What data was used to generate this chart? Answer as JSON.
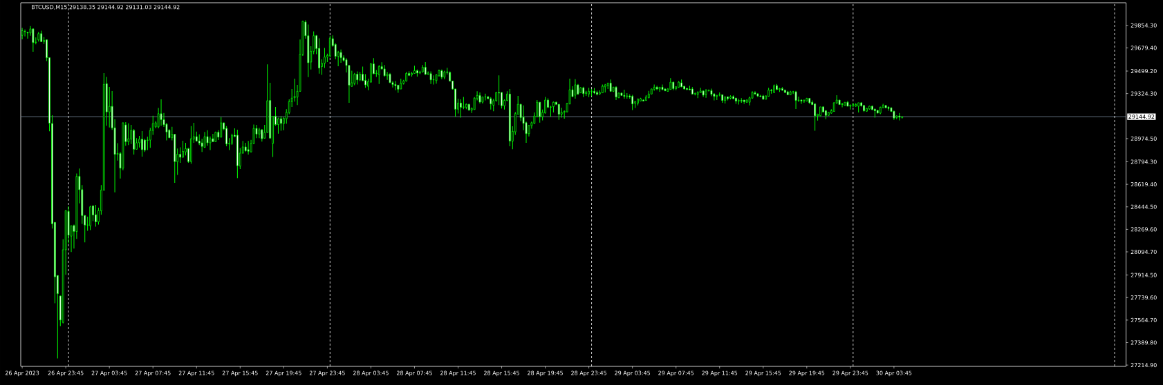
{
  "chart_data": {
    "type": "candlestick",
    "title": "BTCUSD,M15 29138.35 29144.92 29131.03 29144.92",
    "color": "#00ff00",
    "x": [
      "2023-04-26T19:45",
      "2023-04-26T20:00",
      "2023-04-26T20:15",
      "2023-04-26T20:30",
      "2023-04-26T20:45",
      "2023-04-26T21:00",
      "2023-04-26T21:15",
      "2023-04-26T21:30",
      "2023-04-26T21:45",
      "2023-04-26T22:00",
      "2023-04-26T22:15",
      "2023-04-26T22:30",
      "2023-04-26T22:45",
      "2023-04-26T23:00",
      "2023-04-26T23:15",
      "2023-04-26T23:30",
      "2023-04-26T23:45",
      "2023-04-27T00:00",
      "2023-04-27T00:15",
      "2023-04-27T00:30",
      "2023-04-27T00:45",
      "2023-04-27T01:00",
      "2023-04-27T01:15",
      "2023-04-27T01:30",
      "2023-04-27T01:45",
      "2023-04-27T02:00",
      "2023-04-27T02:15",
      "2023-04-27T02:30",
      "2023-04-27T02:45",
      "2023-04-27T03:00",
      "2023-04-27T03:15",
      "2023-04-27T03:30",
      "2023-04-27T03:45",
      "2023-04-27T04:00",
      "2023-04-27T04:15",
      "2023-04-27T04:30",
      "2023-04-27T04:45",
      "2023-04-27T05:00",
      "2023-04-27T05:15",
      "2023-04-27T05:30",
      "2023-04-27T05:45",
      "2023-04-27T06:00",
      "2023-04-27T06:15",
      "2023-04-27T06:30",
      "2023-04-27T06:45",
      "2023-04-27T07:00",
      "2023-04-27T07:15",
      "2023-04-27T07:30",
      "2023-04-27T07:45",
      "2023-04-27T08:00",
      "2023-04-27T08:15",
      "2023-04-27T08:30",
      "2023-04-27T08:45",
      "2023-04-27T09:00",
      "2023-04-27T09:15",
      "2023-04-27T09:30",
      "2023-04-27T09:45",
      "2023-04-27T10:00",
      "2023-04-27T10:15",
      "2023-04-27T10:30",
      "2023-04-27T10:45",
      "2023-04-27T11:00",
      "2023-04-27T11:15",
      "2023-04-27T11:30",
      "2023-04-27T11:45",
      "2023-04-27T12:00",
      "2023-04-27T12:15",
      "2023-04-27T12:30",
      "2023-04-27T12:45",
      "2023-04-27T13:00",
      "2023-04-27T13:15",
      "2023-04-27T13:30",
      "2023-04-27T13:45",
      "2023-04-27T14:00",
      "2023-04-27T14:15",
      "2023-04-27T14:30",
      "2023-04-27T14:45",
      "2023-04-27T15:00",
      "2023-04-27T15:15",
      "2023-04-27T15:30",
      "2023-04-27T15:45",
      "2023-04-27T16:00",
      "2023-04-27T16:15",
      "2023-04-27T16:30",
      "2023-04-27T16:45",
      "2023-04-27T17:00",
      "2023-04-27T17:15",
      "2023-04-27T17:30",
      "2023-04-27T17:45",
      "2023-04-27T18:00",
      "2023-04-27T18:15",
      "2023-04-27T18:30",
      "2023-04-27T18:45",
      "2023-04-27T19:00",
      "2023-04-27T19:15",
      "2023-04-27T19:30",
      "2023-04-27T19:45",
      "2023-04-27T20:00",
      "2023-04-27T20:15",
      "2023-04-27T20:30",
      "2023-04-27T20:45",
      "2023-04-27T21:00",
      "2023-04-27T21:15",
      "2023-04-27T21:30",
      "2023-04-27T21:45",
      "2023-04-27T22:00",
      "2023-04-27T22:15",
      "2023-04-27T22:30",
      "2023-04-27T22:45",
      "2023-04-27T23:00",
      "2023-04-27T23:15",
      "2023-04-27T23:30",
      "2023-04-27T23:45",
      "2023-04-28T00:00",
      "2023-04-28T00:15",
      "2023-04-28T00:30",
      "2023-04-28T00:45",
      "2023-04-28T01:00",
      "2023-04-28T01:15",
      "2023-04-28T01:30",
      "2023-04-28T01:45",
      "2023-04-28T02:00",
      "2023-04-28T02:15",
      "2023-04-28T02:30",
      "2023-04-28T02:45",
      "2023-04-28T03:00",
      "2023-04-28T03:15",
      "2023-04-28T03:30",
      "2023-04-28T03:45",
      "2023-04-28T04:00",
      "2023-04-28T04:15",
      "2023-04-28T04:30",
      "2023-04-28T04:45",
      "2023-04-28T05:00",
      "2023-04-28T05:15",
      "2023-04-28T05:30",
      "2023-04-28T05:45",
      "2023-04-28T06:00",
      "2023-04-28T06:15",
      "2023-04-28T06:30",
      "2023-04-28T06:45",
      "2023-04-28T07:00",
      "2023-04-28T07:15",
      "2023-04-28T07:30",
      "2023-04-28T07:45",
      "2023-04-28T08:00",
      "2023-04-28T08:15",
      "2023-04-28T08:30",
      "2023-04-28T08:45",
      "2023-04-28T09:00",
      "2023-04-28T09:15",
      "2023-04-28T09:30",
      "2023-04-28T09:45",
      "2023-04-28T10:00",
      "2023-04-28T10:15",
      "2023-04-28T10:30",
      "2023-04-28T10:45",
      "2023-04-28T11:00",
      "2023-04-28T11:15",
      "2023-04-28T11:30",
      "2023-04-28T11:45",
      "2023-04-28T12:00",
      "2023-04-28T12:15",
      "2023-04-28T12:30",
      "2023-04-28T12:45",
      "2023-04-28T13:00",
      "2023-04-28T13:15",
      "2023-04-28T13:30",
      "2023-04-28T13:45",
      "2023-04-28T14:00",
      "2023-04-28T14:15",
      "2023-04-28T14:30",
      "2023-04-28T14:45",
      "2023-04-28T15:00",
      "2023-04-28T15:15",
      "2023-04-28T15:30",
      "2023-04-28T15:45",
      "2023-04-28T16:00",
      "2023-04-28T16:15",
      "2023-04-28T16:30",
      "2023-04-28T16:45",
      "2023-04-28T17:00",
      "2023-04-28T17:15",
      "2023-04-28T17:30",
      "2023-04-28T17:45",
      "2023-04-28T18:00",
      "2023-04-28T18:15",
      "2023-04-28T18:30",
      "2023-04-28T18:45",
      "2023-04-28T19:00",
      "2023-04-28T19:15",
      "2023-04-28T19:30",
      "2023-04-28T19:45",
      "2023-04-28T20:00",
      "2023-04-28T20:15",
      "2023-04-28T20:30",
      "2023-04-28T20:45",
      "2023-04-28T21:00",
      "2023-04-28T21:15",
      "2023-04-28T21:30",
      "2023-04-28T21:45",
      "2023-04-28T22:00",
      "2023-04-28T22:15",
      "2023-04-28T22:30",
      "2023-04-28T22:45",
      "2023-04-28T23:00",
      "2023-04-28T23:15",
      "2023-04-28T23:30",
      "2023-04-28T23:45",
      "2023-04-29T00:00",
      "2023-04-29T00:15",
      "2023-04-29T00:30",
      "2023-04-29T00:45",
      "2023-04-29T01:00",
      "2023-04-29T01:15",
      "2023-04-29T01:30",
      "2023-04-29T01:45",
      "2023-04-29T02:00",
      "2023-04-29T02:15",
      "2023-04-29T02:30",
      "2023-04-29T02:45",
      "2023-04-29T03:00",
      "2023-04-29T03:15",
      "2023-04-29T03:30",
      "2023-04-29T03:45",
      "2023-04-29T04:00",
      "2023-04-29T04:15",
      "2023-04-29T04:30",
      "2023-04-29T04:45",
      "2023-04-29T05:00",
      "2023-04-29T05:15",
      "2023-04-29T05:30",
      "2023-04-29T05:45",
      "2023-04-29T06:00",
      "2023-04-29T06:15",
      "2023-04-29T06:30",
      "2023-04-29T06:45",
      "2023-04-29T07:00",
      "2023-04-29T07:15",
      "2023-04-29T07:30",
      "2023-04-29T07:45",
      "2023-04-29T08:00",
      "2023-04-29T08:15",
      "2023-04-29T08:30",
      "2023-04-29T08:45",
      "2023-04-29T09:00",
      "2023-04-29T09:15",
      "2023-04-29T09:30",
      "2023-04-29T09:45",
      "2023-04-29T10:00",
      "2023-04-29T10:15",
      "2023-04-29T10:30",
      "2023-04-29T10:45",
      "2023-04-29T11:00",
      "2023-04-29T11:15",
      "2023-04-29T11:30",
      "2023-04-29T11:45",
      "2023-04-29T12:00",
      "2023-04-29T12:15",
      "2023-04-29T12:30",
      "2023-04-29T12:45",
      "2023-04-29T13:00",
      "2023-04-29T13:15",
      "2023-04-29T13:30",
      "2023-04-29T13:45",
      "2023-04-29T14:00",
      "2023-04-29T14:15",
      "2023-04-29T14:30",
      "2023-04-29T14:45",
      "2023-04-29T15:00",
      "2023-04-29T15:15",
      "2023-04-29T15:30",
      "2023-04-29T15:45",
      "2023-04-29T16:00",
      "2023-04-29T16:15",
      "2023-04-29T16:30",
      "2023-04-29T16:45",
      "2023-04-29T17:00",
      "2023-04-29T17:15",
      "2023-04-29T17:30",
      "2023-04-29T17:45",
      "2023-04-29T18:00",
      "2023-04-29T18:15",
      "2023-04-29T18:30",
      "2023-04-29T18:45",
      "2023-04-29T19:00",
      "2023-04-29T19:15",
      "2023-04-29T19:30",
      "2023-04-29T19:45",
      "2023-04-29T20:00",
      "2023-04-29T20:15",
      "2023-04-29T20:30",
      "2023-04-29T20:45",
      "2023-04-29T21:00",
      "2023-04-29T21:15",
      "2023-04-29T21:30",
      "2023-04-29T21:45",
      "2023-04-29T22:00",
      "2023-04-29T22:15",
      "2023-04-29T22:30",
      "2023-04-29T22:45",
      "2023-04-29T23:00",
      "2023-04-29T23:15",
      "2023-04-29T23:30",
      "2023-04-29T23:45",
      "2023-04-30T00:00",
      "2023-04-30T00:15",
      "2023-04-30T00:30",
      "2023-04-30T00:45",
      "2023-04-30T01:00",
      "2023-04-30T01:15",
      "2023-04-30T01:30",
      "2023-04-30T01:45",
      "2023-04-30T02:00",
      "2023-04-30T02:15",
      "2023-04-30T02:30",
      "2023-04-30T02:45",
      "2023-04-30T03:00",
      "2023-04-30T03:15",
      "2023-04-30T03:30",
      "2023-04-30T03:45",
      "2023-04-30T04:00",
      "2023-04-30T04:15",
      "2023-04-30T04:30"
    ],
    "ohlc": [
      [
        29777,
        29834,
        29746,
        29813
      ],
      [
        29808,
        29822,
        29769,
        29806
      ],
      [
        29800,
        29805,
        29751,
        29795
      ],
      [
        29795,
        29849,
        29774,
        29827
      ],
      [
        29827,
        29830,
        29650,
        29721
      ],
      [
        29721,
        29760,
        29707,
        29724
      ],
      [
        29742,
        29804,
        29728,
        29790
      ],
      [
        29790,
        29813,
        29724,
        29728
      ],
      [
        29728,
        29763,
        29710,
        29738
      ],
      [
        29742,
        29745,
        29577,
        29603
      ],
      [
        29603,
        29605,
        29031,
        29095
      ],
      [
        29092,
        29156,
        28276,
        28313
      ],
      [
        28324,
        28326,
        27695,
        27901
      ],
      [
        27911,
        27913,
        27267,
        27770
      ],
      [
        27752,
        27754,
        27517,
        27565
      ],
      [
        27547,
        28193,
        27539,
        28111
      ],
      [
        28111,
        28418,
        27917,
        28415
      ],
      [
        28409,
        28448,
        28161,
        28223
      ],
      [
        28217,
        28300,
        28093,
        28297
      ],
      [
        28299,
        28306,
        28120,
        28253
      ],
      [
        28253,
        28703,
        28196,
        28681
      ],
      [
        28681,
        28742,
        28472,
        28578
      ],
      [
        28578,
        28614,
        28312,
        28377
      ],
      [
        28377,
        28380,
        28168,
        28303
      ],
      [
        28303,
        28368,
        28258,
        28303
      ],
      [
        28297,
        28452,
        28264,
        28445
      ],
      [
        28452,
        28455,
        28333,
        28381
      ],
      [
        28383,
        28459,
        28290,
        28328
      ],
      [
        28328,
        28438,
        28306,
        28415
      ],
      [
        28413,
        28614,
        28383,
        28575
      ],
      [
        28575,
        29483,
        28569,
        29396
      ],
      [
        29401,
        29454,
        29074,
        29182
      ],
      [
        29182,
        29376,
        29061,
        29225
      ],
      [
        29225,
        29344,
        29042,
        29058
      ],
      [
        29058,
        29125,
        28557,
        28852
      ],
      [
        28852,
        28939,
        28804,
        28859
      ],
      [
        28859,
        28871,
        28665,
        28745
      ],
      [
        28745,
        29100,
        28729,
        29097
      ],
      [
        29081,
        29102,
        28919,
        28951
      ],
      [
        28951,
        29093,
        28924,
        28974
      ],
      [
        28970,
        29081,
        28933,
        29038
      ],
      [
        29038,
        29049,
        28850,
        28892
      ],
      [
        28892,
        28978,
        28890,
        28942
      ],
      [
        28942,
        28995,
        28906,
        28970
      ],
      [
        28970,
        29033,
        28835,
        28889
      ],
      [
        28963,
        28974,
        28871,
        28885
      ],
      [
        28961,
        28990,
        28885,
        28963
      ],
      [
        28963,
        29058,
        28903,
        29038
      ],
      [
        29038,
        29152,
        29004,
        29091
      ],
      [
        29066,
        29111,
        29054,
        29098
      ],
      [
        29066,
        29212,
        29054,
        29168
      ],
      [
        29168,
        29280,
        29075,
        29122
      ],
      [
        29122,
        29173,
        29065,
        29082
      ],
      [
        29086,
        29097,
        28960,
        29026
      ],
      [
        29040,
        29047,
        28978,
        28981
      ],
      [
        28981,
        29066,
        28960,
        29008
      ],
      [
        29008,
        29010,
        28631,
        28796
      ],
      [
        28795,
        28898,
        28693,
        28853
      ],
      [
        28853,
        28907,
        28787,
        28830
      ],
      [
        28830,
        28958,
        28826,
        28875
      ],
      [
        28871,
        28942,
        28844,
        28896
      ],
      [
        28896,
        28903,
        28787,
        28796
      ],
      [
        28796,
        29072,
        28780,
        28974
      ],
      [
        28970,
        29097,
        28942,
        28990
      ],
      [
        28990,
        29029,
        28951,
        28956
      ],
      [
        28956,
        29008,
        28924,
        28940
      ],
      [
        28942,
        28974,
        28871,
        28914
      ],
      [
        28907,
        29026,
        28903,
        28990
      ],
      [
        28990,
        29040,
        28919,
        28942
      ],
      [
        28942,
        28992,
        28885,
        28974
      ],
      [
        28974,
        29011,
        28948,
        28951
      ],
      [
        28951,
        29029,
        28948,
        29024
      ],
      [
        29024,
        29040,
        28963,
        28986
      ],
      [
        28986,
        29141,
        28984,
        29097
      ],
      [
        29097,
        29100,
        29040,
        29049
      ],
      [
        29054,
        29072,
        28915,
        28933
      ],
      [
        28933,
        28978,
        28885,
        28938
      ],
      [
        28938,
        29013,
        28926,
        29001
      ],
      [
        29001,
        29054,
        28986,
        28992
      ],
      [
        29001,
        29043,
        28667,
        28764
      ],
      [
        28761,
        28901,
        28738,
        28862
      ],
      [
        28862,
        28956,
        28858,
        28910
      ],
      [
        28910,
        28942,
        28871,
        28880
      ],
      [
        28889,
        28956,
        28850,
        28876
      ],
      [
        28871,
        28965,
        28868,
        28937
      ],
      [
        28937,
        29084,
        28933,
        29054
      ],
      [
        29054,
        29081,
        28978,
        29010
      ],
      [
        29010,
        29058,
        28978,
        29043
      ],
      [
        29043,
        29049,
        28951,
        28974
      ],
      [
        28978,
        29081,
        28975,
        29022
      ],
      [
        29022,
        29552,
        29020,
        29269
      ],
      [
        29271,
        29408,
        28975,
        28978
      ],
      [
        28937,
        29150,
        28832,
        29148
      ],
      [
        29148,
        29221,
        29075,
        29084
      ],
      [
        29084,
        29138,
        29013,
        29129
      ],
      [
        29129,
        29150,
        29036,
        29093
      ],
      [
        29091,
        29143,
        29040,
        29132
      ],
      [
        29129,
        29203,
        29090,
        29178
      ],
      [
        29178,
        29280,
        29164,
        29262
      ],
      [
        29262,
        29360,
        29221,
        29289
      ],
      [
        29292,
        29440,
        29262,
        29303
      ],
      [
        29297,
        29392,
        29235,
        29342
      ],
      [
        29342,
        29745,
        29340,
        29630
      ],
      [
        29630,
        29890,
        29617,
        29887
      ],
      [
        29880,
        29893,
        29751,
        29774
      ],
      [
        29774,
        29861,
        29452,
        29564
      ],
      [
        29569,
        29692,
        29511,
        29653
      ],
      [
        29653,
        29807,
        29630,
        29774
      ],
      [
        29774,
        29780,
        29630,
        29674
      ],
      [
        29676,
        29754,
        29479,
        29523
      ],
      [
        29534,
        29591,
        29470,
        29560
      ],
      [
        29560,
        29679,
        29523,
        29608
      ],
      [
        29608,
        29635,
        29569,
        29621
      ],
      [
        29617,
        29774,
        29605,
        29754
      ],
      [
        29751,
        29777,
        29688,
        29697
      ],
      [
        29706,
        29715,
        29591,
        29614
      ],
      [
        29614,
        29656,
        29537,
        29644
      ],
      [
        29644,
        29667,
        29564,
        29603
      ],
      [
        29603,
        29621,
        29573,
        29582
      ],
      [
        29587,
        29600,
        29488,
        29543
      ],
      [
        29543,
        29545,
        29253,
        29390
      ],
      [
        29381,
        29502,
        29377,
        29408
      ],
      [
        29404,
        29484,
        29390,
        29475
      ],
      [
        29475,
        29497,
        29395,
        29431
      ],
      [
        29431,
        29493,
        29422,
        29475
      ],
      [
        29475,
        29534,
        29422,
        29425
      ],
      [
        29427,
        29475,
        29369,
        29392
      ],
      [
        29381,
        29440,
        29351,
        29418
      ],
      [
        29413,
        29564,
        29411,
        29555
      ],
      [
        29555,
        29600,
        29475,
        29479
      ],
      [
        29479,
        29507,
        29454,
        29482
      ],
      [
        29470,
        29546,
        29399,
        29534
      ],
      [
        29534,
        29568,
        29511,
        29516
      ],
      [
        29516,
        29546,
        29457,
        29463
      ],
      [
        29463,
        29493,
        29431,
        29475
      ],
      [
        29475,
        29484,
        29408,
        29409
      ],
      [
        29409,
        29422,
        29372,
        29395
      ],
      [
        29395,
        29422,
        29351,
        29386
      ],
      [
        29390,
        29392,
        29330,
        29358
      ],
      [
        29360,
        29440,
        29358,
        29404
      ],
      [
        29404,
        29431,
        29395,
        29422
      ],
      [
        29422,
        29493,
        29418,
        29481
      ],
      [
        29481,
        29498,
        29461,
        29466
      ],
      [
        29470,
        29493,
        29457,
        29481
      ],
      [
        29481,
        29541,
        29479,
        29502
      ],
      [
        29502,
        29511,
        29457,
        29484
      ],
      [
        29484,
        29502,
        29475,
        29493
      ],
      [
        29493,
        29546,
        29487,
        29529
      ],
      [
        29529,
        29569,
        29467,
        29475
      ],
      [
        29475,
        29497,
        29470,
        29484
      ],
      [
        29479,
        29497,
        29399,
        29431
      ],
      [
        29431,
        29466,
        29395,
        29434
      ],
      [
        29425,
        29475,
        29401,
        29470
      ],
      [
        29463,
        29511,
        29457,
        29502
      ],
      [
        29502,
        29511,
        29436,
        29452
      ],
      [
        29452,
        29502,
        29436,
        29493
      ],
      [
        29493,
        29525,
        29472,
        29489
      ],
      [
        29489,
        29497,
        29418,
        29422
      ],
      [
        29422,
        29424,
        29354,
        29360
      ],
      [
        29360,
        29362,
        29146,
        29203
      ],
      [
        29203,
        29285,
        29170,
        29251
      ],
      [
        29251,
        29280,
        29138,
        29218
      ],
      [
        29218,
        29298,
        29203,
        29221
      ],
      [
        29218,
        29248,
        29203,
        29241
      ],
      [
        29241,
        29244,
        29191,
        29196
      ],
      [
        29196,
        29217,
        29173,
        29209
      ],
      [
        29200,
        29297,
        29199,
        29289
      ],
      [
        29285,
        29342,
        29271,
        29310
      ],
      [
        29310,
        29333,
        29248,
        29258
      ],
      [
        29258,
        29301,
        29248,
        29298
      ],
      [
        29298,
        29324,
        29271,
        29299
      ],
      [
        29299,
        29306,
        29280,
        29285
      ],
      [
        29285,
        29297,
        29200,
        29244
      ],
      [
        29234,
        29283,
        29187,
        29269
      ],
      [
        29269,
        29337,
        29262,
        29333
      ],
      [
        29333,
        29466,
        29235,
        29328
      ],
      [
        29333,
        29335,
        29209,
        29230
      ],
      [
        29230,
        29280,
        29200,
        29271
      ],
      [
        29271,
        29342,
        29265,
        29321
      ],
      [
        29321,
        29360,
        28915,
        28956
      ],
      [
        28955,
        29070,
        28892,
        29031
      ],
      [
        29027,
        29182,
        29004,
        29168
      ],
      [
        29164,
        29306,
        29163,
        29241
      ],
      [
        29241,
        29244,
        29111,
        29138
      ],
      [
        29141,
        29232,
        29040,
        29093
      ],
      [
        29098,
        29106,
        28942,
        29013
      ],
      [
        29013,
        29081,
        28992,
        29075
      ],
      [
        29075,
        29106,
        29052,
        29098
      ],
      [
        29093,
        29177,
        29088,
        29150
      ],
      [
        29145,
        29274,
        29141,
        29257
      ],
      [
        29257,
        29259,
        29098,
        29145
      ],
      [
        29145,
        29200,
        29116,
        29178
      ],
      [
        29173,
        29298,
        29169,
        29274
      ],
      [
        29274,
        29288,
        29212,
        29218
      ],
      [
        29218,
        29230,
        29146,
        29221
      ],
      [
        29223,
        29262,
        29177,
        29257
      ],
      [
        29257,
        29262,
        29235,
        29241
      ],
      [
        29241,
        29242,
        29120,
        29164
      ],
      [
        29164,
        29214,
        29138,
        29178
      ],
      [
        29178,
        29194,
        29129,
        29186
      ],
      [
        29182,
        29253,
        29180,
        29248
      ],
      [
        29244,
        29440,
        29240,
        29354
      ],
      [
        29354,
        29381,
        29297,
        29301
      ],
      [
        29312,
        29436,
        29285,
        29392
      ],
      [
        29392,
        29399,
        29315,
        29321
      ],
      [
        29330,
        29374,
        29329,
        29369
      ],
      [
        29369,
        29377,
        29297,
        29324
      ],
      [
        29324,
        29346,
        29306,
        29337
      ],
      [
        29321,
        29369,
        29297,
        29342
      ],
      [
        29342,
        29360,
        29303,
        29342
      ],
      [
        29342,
        29368,
        29321,
        29330
      ],
      [
        29333,
        29347,
        29310,
        29319
      ],
      [
        29321,
        29349,
        29315,
        29333
      ],
      [
        29330,
        29395,
        29328,
        29381
      ],
      [
        29377,
        29399,
        29333,
        29392
      ],
      [
        29386,
        29410,
        29360,
        29404
      ],
      [
        29406,
        29434,
        29338,
        29342
      ],
      [
        29342,
        29377,
        29337,
        29374
      ],
      [
        29374,
        29381,
        29274,
        29298
      ],
      [
        29292,
        29333,
        29289,
        29328
      ],
      [
        29328,
        29333,
        29306,
        29310
      ],
      [
        29310,
        29354,
        29285,
        29303
      ],
      [
        29303,
        29328,
        29285,
        29306
      ],
      [
        29306,
        29319,
        29285,
        29298
      ],
      [
        29303,
        29315,
        29196,
        29244
      ],
      [
        29250,
        29266,
        29212,
        29262
      ],
      [
        29250,
        29284,
        29232,
        29283
      ],
      [
        29267,
        29292,
        29265,
        29285
      ],
      [
        29274,
        29280,
        29265,
        29267
      ],
      [
        29271,
        29312,
        29270,
        29298
      ],
      [
        29292,
        29345,
        29288,
        29321
      ],
      [
        29321,
        29363,
        29320,
        29360
      ],
      [
        29358,
        29395,
        29347,
        29374
      ],
      [
        29374,
        29386,
        29351,
        29360
      ],
      [
        29360,
        29374,
        29338,
        29374
      ],
      [
        29374,
        29395,
        29351,
        29356
      ],
      [
        29360,
        29367,
        29342,
        29347
      ],
      [
        29342,
        29367,
        29338,
        29360
      ],
      [
        29356,
        29445,
        29356,
        29413
      ],
      [
        29413,
        29417,
        29351,
        29363
      ],
      [
        29363,
        29381,
        29351,
        29377
      ],
      [
        29374,
        29422,
        29369,
        29413
      ],
      [
        29408,
        29434,
        29374,
        29377
      ],
      [
        29381,
        29386,
        29356,
        29360
      ],
      [
        29365,
        29368,
        29351,
        29356
      ],
      [
        29360,
        29386,
        29351,
        29354
      ],
      [
        29360,
        29374,
        29319,
        29321
      ],
      [
        29321,
        29333,
        29310,
        29324
      ],
      [
        29319,
        29342,
        29289,
        29333
      ],
      [
        29331,
        29369,
        29331,
        29345
      ],
      [
        29345,
        29346,
        29298,
        29312
      ],
      [
        29319,
        29360,
        29292,
        29345
      ],
      [
        29345,
        29356,
        29342,
        29351
      ],
      [
        29347,
        29363,
        29303,
        29319
      ],
      [
        29321,
        29328,
        29271,
        29303
      ],
      [
        29303,
        29315,
        29274,
        29310
      ],
      [
        29313,
        29333,
        29303,
        29315
      ],
      [
        29315,
        29319,
        29253,
        29271
      ],
      [
        29271,
        29303,
        29248,
        29298
      ],
      [
        29298,
        29303,
        29271,
        29285
      ],
      [
        29289,
        29310,
        29280,
        29301
      ],
      [
        29301,
        29310,
        29280,
        29285
      ],
      [
        29289,
        29292,
        29244,
        29266
      ],
      [
        29266,
        29285,
        29239,
        29271
      ],
      [
        29271,
        29289,
        29253,
        29267
      ],
      [
        29274,
        29274,
        29244,
        29262
      ],
      [
        29257,
        29280,
        29253,
        29274
      ],
      [
        29257,
        29301,
        29232,
        29292
      ],
      [
        29289,
        29342,
        29285,
        29333
      ],
      [
        29331,
        29342,
        29315,
        29322
      ],
      [
        29322,
        29328,
        29297,
        29306
      ],
      [
        29306,
        29315,
        29297,
        29301
      ],
      [
        29306,
        29315,
        29280,
        29280
      ],
      [
        29280,
        29310,
        29280,
        29306
      ],
      [
        29303,
        29369,
        29303,
        29351
      ],
      [
        29351,
        29360,
        29324,
        29347
      ],
      [
        29333,
        29395,
        29328,
        29386
      ],
      [
        29386,
        29399,
        29351,
        29356
      ],
      [
        29356,
        29369,
        29337,
        29363
      ],
      [
        29363,
        29374,
        29345,
        29351
      ],
      [
        29351,
        29356,
        29328,
        29333
      ],
      [
        29338,
        29345,
        29312,
        29315
      ],
      [
        29315,
        29345,
        29312,
        29338
      ],
      [
        29338,
        29345,
        29321,
        29338
      ],
      [
        29338,
        29345,
        29205,
        29271
      ],
      [
        29271,
        29301,
        29260,
        29274
      ],
      [
        29274,
        29280,
        29244,
        29266
      ],
      [
        29266,
        29280,
        29253,
        29271
      ],
      [
        29266,
        29292,
        29265,
        29287
      ],
      [
        29287,
        29289,
        29244,
        29253
      ],
      [
        29257,
        29271,
        29235,
        29239
      ],
      [
        29244,
        29246,
        29036,
        29152
      ],
      [
        29152,
        29168,
        29114,
        29164
      ],
      [
        29152,
        29221,
        29150,
        29221
      ],
      [
        29221,
        29226,
        29178,
        29182
      ],
      [
        29191,
        29196,
        29125,
        29155
      ],
      [
        29155,
        29182,
        29152,
        29178
      ],
      [
        29173,
        29203,
        29168,
        29191
      ],
      [
        29186,
        29257,
        29185,
        29253
      ],
      [
        29251,
        29312,
        29244,
        29274
      ],
      [
        29274,
        29276,
        29239,
        29239
      ],
      [
        29239,
        29253,
        29218,
        29244
      ],
      [
        29232,
        29257,
        29232,
        29257
      ],
      [
        29257,
        29267,
        29226,
        29226
      ],
      [
        29226,
        29239,
        29200,
        29235
      ],
      [
        29228,
        29253,
        29221,
        29239
      ],
      [
        29228,
        29250,
        29221,
        29239
      ],
      [
        29226,
        29253,
        29177,
        29253
      ],
      [
        29253,
        29257,
        29223,
        29230
      ],
      [
        29232,
        29235,
        29182,
        29191
      ],
      [
        29187,
        29212,
        29185,
        29209
      ],
      [
        29205,
        29230,
        29200,
        29226
      ],
      [
        29226,
        29232,
        29196,
        29200
      ],
      [
        29203,
        29209,
        29138,
        29191
      ],
      [
        29194,
        29196,
        29169,
        29173
      ],
      [
        29173,
        29223,
        29164,
        29218
      ],
      [
        29214,
        29244,
        29212,
        29232
      ],
      [
        29232,
        29235,
        29212,
        29214
      ],
      [
        29218,
        29226,
        29191,
        29209
      ],
      [
        29214,
        29217,
        29182,
        29186
      ],
      [
        29187,
        29191,
        29120,
        29134
      ],
      [
        29138,
        29155,
        29125,
        29150
      ],
      [
        29150,
        29173,
        29116,
        29141
      ],
      [
        29138.35,
        29144.92,
        29131.03,
        29144.92
      ]
    ],
    "xlim": [
      "2023-04-26T19:37",
      "2023-05-01T01:03"
    ],
    "ylim": [
      27205,
      30030
    ],
    "xticks": [
      {
        "value": "2023-04-26T19:45",
        "label": "26 Apr 2023"
      },
      {
        "value": "2023-04-26T23:45",
        "label": "26 Apr 23:45"
      },
      {
        "value": "2023-04-27T03:45",
        "label": "27 Apr 03:45"
      },
      {
        "value": "2023-04-27T07:45",
        "label": "27 Apr 07:45"
      },
      {
        "value": "2023-04-27T11:45",
        "label": "27 Apr 11:45"
      },
      {
        "value": "2023-04-27T15:45",
        "label": "27 Apr 15:45"
      },
      {
        "value": "2023-04-27T19:45",
        "label": "27 Apr 19:45"
      },
      {
        "value": "2023-04-27T23:45",
        "label": "27 Apr 23:45"
      },
      {
        "value": "2023-04-28T03:45",
        "label": "28 Apr 03:45"
      },
      {
        "value": "2023-04-28T07:45",
        "label": "28 Apr 07:45"
      },
      {
        "value": "2023-04-28T11:45",
        "label": "28 Apr 11:45"
      },
      {
        "value": "2023-04-28T15:45",
        "label": "28 Apr 15:45"
      },
      {
        "value": "2023-04-28T19:45",
        "label": "28 Apr 19:45"
      },
      {
        "value": "2023-04-28T23:45",
        "label": "28 Apr 23:45"
      },
      {
        "value": "2023-04-29T03:45",
        "label": "29 Apr 03:45"
      },
      {
        "value": "2023-04-29T07:45",
        "label": "29 Apr 07:45"
      },
      {
        "value": "2023-04-29T11:45",
        "label": "29 Apr 11:45"
      },
      {
        "value": "2023-04-29T15:45",
        "label": "29 Apr 15:45"
      },
      {
        "value": "2023-04-29T19:45",
        "label": "29 Apr 19:45"
      },
      {
        "value": "2023-04-29T23:45",
        "label": "29 Apr 23:45"
      },
      {
        "value": "2023-04-30T03:45",
        "label": "30 Apr 03:45"
      }
    ],
    "yticks": [
      {
        "value": 27214.9,
        "label": "27214.90"
      },
      {
        "value": 27389.8,
        "label": "27389.80"
      },
      {
        "value": 27564.7,
        "label": "27564.70"
      },
      {
        "value": 27739.6,
        "label": "27739.60"
      },
      {
        "value": 27914.5,
        "label": "27914.50"
      },
      {
        "value": 28094.7,
        "label": "28094.70"
      },
      {
        "value": 28269.6,
        "label": "28269.60"
      },
      {
        "value": 28444.5,
        "label": "28444.50"
      },
      {
        "value": 28619.4,
        "label": "28619.40"
      },
      {
        "value": 28794.3,
        "label": "28794.30"
      },
      {
        "value": 28974.5,
        "label": "28974.50"
      },
      {
        "value": 29324.3,
        "label": "29324.30"
      },
      {
        "value": 29499.2,
        "label": "29499.20"
      },
      {
        "value": 29679.4,
        "label": "29679.40"
      },
      {
        "value": 29854.3,
        "label": "29854.30"
      }
    ],
    "ref_lines": [
      {
        "axis": "y",
        "value": 29144.92,
        "label": "29144.92",
        "color": "#778899"
      },
      {
        "axis": "x",
        "value": "2023-04-27T00:00",
        "color": "#ffffff",
        "line_style": "dashed"
      },
      {
        "axis": "x",
        "value": "2023-04-28T00:00",
        "color": "#ffffff",
        "line_style": "dashed"
      },
      {
        "axis": "x",
        "value": "2023-04-29T00:00",
        "color": "#ffffff",
        "line_style": "dashed"
      },
      {
        "axis": "x",
        "value": "2023-04-30T00:00",
        "color": "#ffffff",
        "line_style": "dashed"
      },
      {
        "axis": "x",
        "value": "2023-05-01T00:00",
        "color": "#ffffff",
        "line_style": "dashed"
      }
    ]
  }
}
